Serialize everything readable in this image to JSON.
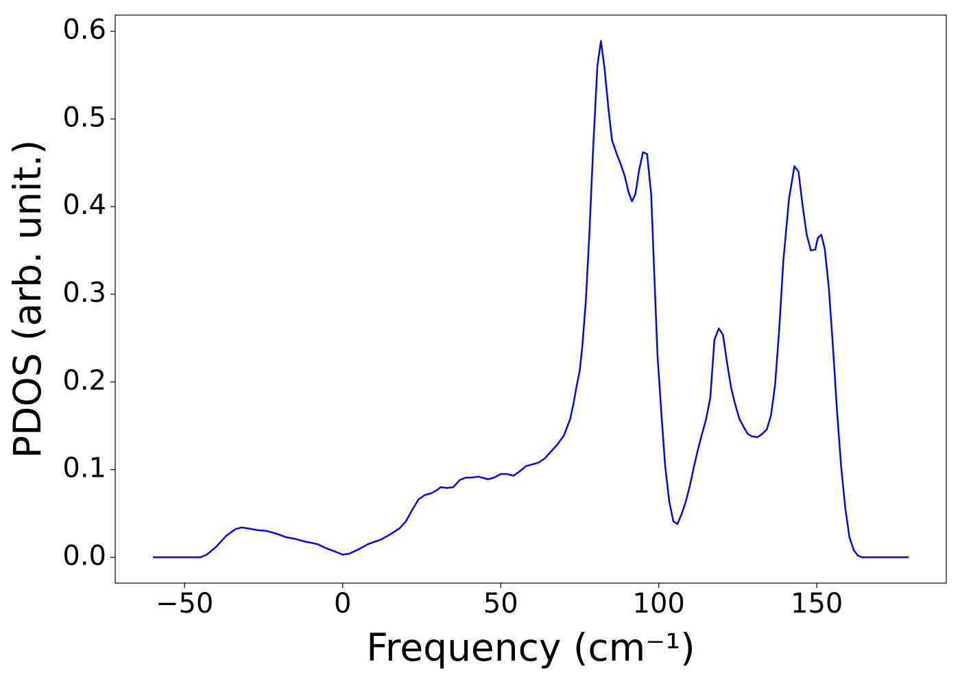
{
  "chart_data": {
    "type": "line",
    "x_label": "Frequency (cm⁻¹)",
    "y_label": "PDOS (arb. unit.)",
    "color": "#0000ff",
    "x": [
      -60,
      -45,
      -43,
      -40,
      -37,
      -34,
      -32,
      -30,
      -27,
      -24,
      -21,
      -18,
      -15,
      -12,
      -8,
      -5,
      -2,
      0,
      2,
      5,
      8,
      12,
      15,
      18,
      20,
      22,
      24,
      26,
      28,
      30,
      31,
      33,
      35,
      37,
      39,
      41,
      43,
      46,
      48,
      50,
      52,
      54,
      56,
      58,
      60,
      62,
      64,
      66,
      68,
      70,
      72,
      73,
      74,
      75,
      75.8,
      76.9,
      78,
      79.3,
      80.6,
      81.7,
      82.8,
      84.1,
      85.2,
      86.7,
      88,
      89.3,
      90.4,
      91.5,
      92.6,
      93.7,
      95,
      96.3,
      97.6,
      98.5,
      99.6,
      100.9,
      102,
      103.3,
      104.6,
      105.9,
      107.2,
      108.5,
      109.8,
      111.1,
      112.4,
      113.7,
      115,
      116.3,
      117.6,
      119,
      120.3,
      121.6,
      122.9,
      124.2,
      125.5,
      126.8,
      128.1,
      129.4,
      131.2,
      132.5,
      134.2,
      135.5,
      136.8,
      138.1,
      139.4,
      141.2,
      142.9,
      144.2,
      145.5,
      146.8,
      148.1,
      149.5,
      150.3,
      151.4,
      152.5,
      153.8,
      155.1,
      156.4,
      157.7,
      159,
      160.3,
      161.7,
      163,
      164.3,
      179
    ],
    "values": [
      0,
      0,
      0.003,
      0.012,
      0.024,
      0.032,
      0.034,
      0.033,
      0.031,
      0.03,
      0.027,
      0.023,
      0.021,
      0.018,
      0.015,
      0.01,
      0.006,
      0.003,
      0.004,
      0.009,
      0.015,
      0.02,
      0.026,
      0.033,
      0.041,
      0.054,
      0.066,
      0.071,
      0.073,
      0.077,
      0.08,
      0.079,
      0.08,
      0.088,
      0.091,
      0.091,
      0.092,
      0.089,
      0.091,
      0.095,
      0.095,
      0.093,
      0.098,
      0.104,
      0.106,
      0.108,
      0.113,
      0.121,
      0.129,
      0.139,
      0.158,
      0.175,
      0.195,
      0.213,
      0.24,
      0.291,
      0.366,
      0.471,
      0.561,
      0.589,
      0.559,
      0.511,
      0.476,
      0.46,
      0.448,
      0.434,
      0.417,
      0.406,
      0.414,
      0.44,
      0.462,
      0.46,
      0.414,
      0.33,
      0.23,
      0.16,
      0.105,
      0.064,
      0.041,
      0.038,
      0.049,
      0.063,
      0.081,
      0.103,
      0.123,
      0.141,
      0.158,
      0.182,
      0.248,
      0.261,
      0.254,
      0.222,
      0.193,
      0.174,
      0.158,
      0.149,
      0.141,
      0.138,
      0.137,
      0.14,
      0.146,
      0.162,
      0.197,
      0.26,
      0.338,
      0.409,
      0.446,
      0.44,
      0.401,
      0.368,
      0.35,
      0.351,
      0.364,
      0.368,
      0.352,
      0.307,
      0.24,
      0.166,
      0.103,
      0.056,
      0.023,
      0.008,
      0.002,
      0,
      0
    ],
    "xlim": [
      -71.95,
      190.95
    ],
    "ylim": [
      -0.02945,
      0.61845
    ],
    "xticks": [
      {
        "value": -50,
        "label": "−50"
      },
      0,
      50,
      100,
      150
    ],
    "yticks": [
      {
        "value": 0,
        "label": "0.0"
      },
      0.1,
      0.2,
      0.3,
      0.4,
      0.5,
      0.6
    ],
    "grid": false
  }
}
